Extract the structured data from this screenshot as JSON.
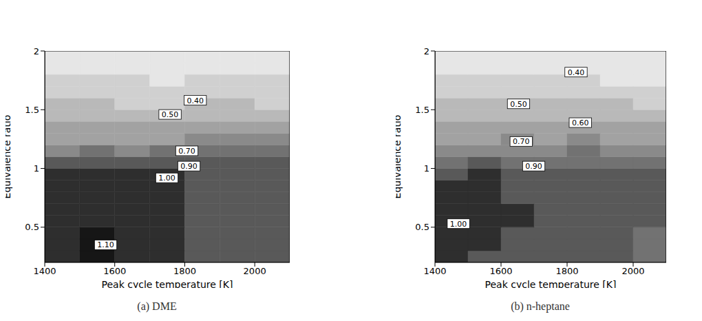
{
  "chart_data": [
    {
      "type": "heatmap",
      "title": "(a) DME",
      "x_label": "Peak cycle temperature [K]",
      "y_label": "Equivalence ratio",
      "xlim": [
        1400,
        2100
      ],
      "xticks": [
        1400,
        1600,
        1800,
        2000
      ],
      "ylim": [
        0.2,
        2
      ],
      "yticks": [
        0.5,
        1,
        1.5,
        2
      ],
      "x": [
        1450,
        1550,
        1650,
        1750,
        1850,
        1950,
        2050
      ],
      "y": [
        0.25,
        0.35,
        0.45,
        0.55,
        0.65,
        0.75,
        0.85,
        0.95,
        1.05,
        1.15,
        1.25,
        1.35,
        1.45,
        1.55,
        1.65,
        1.75,
        1.85,
        1.95
      ],
      "z": [
        [
          1.07,
          1.1,
          1.05,
          1.02,
          0.96,
          0.94,
          0.92
        ],
        [
          1.09,
          1.12,
          1.05,
          1.02,
          0.96,
          0.94,
          0.92
        ],
        [
          1.08,
          1.11,
          1.05,
          1.02,
          0.96,
          0.94,
          0.92
        ],
        [
          1.06,
          1.08,
          1.04,
          1.01,
          0.95,
          0.95,
          0.92
        ],
        [
          1.05,
          1.06,
          1.04,
          1.01,
          0.96,
          0.95,
          0.93
        ],
        [
          1.04,
          1.05,
          1.04,
          1.01,
          0.95,
          0.96,
          0.94
        ],
        [
          1.04,
          1.05,
          1.03,
          1.01,
          0.95,
          0.96,
          0.95
        ],
        [
          1.02,
          1.03,
          1.02,
          1.0,
          0.96,
          0.96,
          0.96
        ],
        [
          0.95,
          0.95,
          0.92,
          0.92,
          0.92,
          0.92,
          0.95
        ],
        [
          0.78,
          0.8,
          0.78,
          0.8,
          0.82,
          0.8,
          0.82
        ],
        [
          0.68,
          0.68,
          0.68,
          0.68,
          0.72,
          0.7,
          0.7
        ],
        [
          0.6,
          0.62,
          0.6,
          0.62,
          0.65,
          0.62,
          0.62
        ],
        [
          0.55,
          0.55,
          0.55,
          0.55,
          0.58,
          0.55,
          0.55
        ],
        [
          0.5,
          0.52,
          0.48,
          0.48,
          0.5,
          0.5,
          0.48
        ],
        [
          0.45,
          0.45,
          0.45,
          0.43,
          0.45,
          0.44,
          0.45
        ],
        [
          0.42,
          0.42,
          0.4,
          0.38,
          0.4,
          0.4,
          0.4
        ],
        [
          0.37,
          0.37,
          0.36,
          0.36,
          0.36,
          0.35,
          0.37
        ],
        [
          0.35,
          0.35,
          0.35,
          0.35,
          0.35,
          0.35,
          0.38
        ]
      ],
      "levels": [
        0.3,
        0.4,
        0.5,
        0.6,
        0.7,
        0.8,
        0.9,
        1.0,
        1.1,
        1.2
      ],
      "colors": [
        "#e6e6e6",
        "#d0d0d0",
        "#b9b9b9",
        "#a2a2a2",
        "#8a8a8a",
        "#727272",
        "#595959",
        "#2e2e2e",
        "#161616"
      ],
      "annotations": [
        {
          "text": "0.40",
          "x": 1830,
          "y": 1.58
        },
        {
          "text": "0.50",
          "x": 1758,
          "y": 1.46
        },
        {
          "text": "0.70",
          "x": 1806,
          "y": 1.15
        },
        {
          "text": "0.90",
          "x": 1812,
          "y": 1.02
        },
        {
          "text": "1.00",
          "x": 1749,
          "y": 0.92
        },
        {
          "text": "1.10",
          "x": 1574,
          "y": 0.35
        }
      ]
    },
    {
      "type": "heatmap",
      "title": "(b) n-heptane",
      "x_label": "Peak cycle temperature [K]",
      "y_label": "Equivalence ratio",
      "xlim": [
        1400,
        2100
      ],
      "xticks": [
        1400,
        1600,
        1800,
        2000
      ],
      "ylim": [
        0.2,
        2
      ],
      "yticks": [
        0.5,
        1,
        1.5,
        2
      ],
      "x": [
        1450,
        1550,
        1650,
        1750,
        1850,
        1950,
        2050
      ],
      "y": [
        0.25,
        0.35,
        0.45,
        0.55,
        0.65,
        0.75,
        0.85,
        0.95,
        1.05,
        1.15,
        1.25,
        1.35,
        1.45,
        1.55,
        1.65,
        1.75,
        1.85,
        1.95
      ],
      "z": [
        [
          1.0,
          0.99,
          0.96,
          0.94,
          0.92,
          0.9,
          0.86
        ],
        [
          1.01,
          1.0,
          0.97,
          0.94,
          0.93,
          0.9,
          0.85
        ],
        [
          1.02,
          1.01,
          0.98,
          0.95,
          0.93,
          0.91,
          0.88
        ],
        [
          1.02,
          1.02,
          1.0,
          0.95,
          0.93,
          0.92,
          0.9
        ],
        [
          1.01,
          1.02,
          1.0,
          0.95,
          0.93,
          0.92,
          0.9
        ],
        [
          1.01,
          1.03,
          0.99,
          0.95,
          0.93,
          0.92,
          0.91
        ],
        [
          1.01,
          1.02,
          0.98,
          0.95,
          0.93,
          0.92,
          0.92
        ],
        [
          0.98,
          1.01,
          0.96,
          0.95,
          0.93,
          0.92,
          0.92
        ],
        [
          0.88,
          0.9,
          0.88,
          0.88,
          0.88,
          0.88,
          0.88
        ],
        [
          0.78,
          0.78,
          0.78,
          0.76,
          0.8,
          0.78,
          0.76
        ],
        [
          0.68,
          0.68,
          0.7,
          0.68,
          0.7,
          0.68,
          0.66
        ],
        [
          0.62,
          0.62,
          0.62,
          0.62,
          0.64,
          0.62,
          0.6
        ],
        [
          0.55,
          0.55,
          0.55,
          0.55,
          0.58,
          0.56,
          0.55
        ],
        [
          0.5,
          0.52,
          0.5,
          0.5,
          0.52,
          0.5,
          0.48
        ],
        [
          0.46,
          0.46,
          0.46,
          0.45,
          0.44,
          0.43,
          0.42
        ],
        [
          0.42,
          0.42,
          0.42,
          0.41,
          0.4,
          0.39,
          0.38
        ],
        [
          0.38,
          0.38,
          0.38,
          0.38,
          0.38,
          0.38,
          0.38
        ],
        [
          0.36,
          0.36,
          0.36,
          0.36,
          0.36,
          0.36,
          0.36
        ]
      ],
      "levels": [
        0.3,
        0.4,
        0.5,
        0.6,
        0.7,
        0.8,
        0.9,
        1.0,
        1.1,
        1.2
      ],
      "colors": [
        "#e6e6e6",
        "#d0d0d0",
        "#b9b9b9",
        "#a2a2a2",
        "#8a8a8a",
        "#727272",
        "#595959",
        "#2e2e2e",
        "#161616"
      ],
      "annotations": [
        {
          "text": "0.40",
          "x": 1827,
          "y": 1.82
        },
        {
          "text": "0.50",
          "x": 1653,
          "y": 1.55
        },
        {
          "text": "0.60",
          "x": 1840,
          "y": 1.39
        },
        {
          "text": "0.70",
          "x": 1661,
          "y": 1.23
        },
        {
          "text": "0.90",
          "x": 1699,
          "y": 1.02
        },
        {
          "text": "1.00",
          "x": 1471,
          "y": 0.53
        }
      ]
    }
  ]
}
